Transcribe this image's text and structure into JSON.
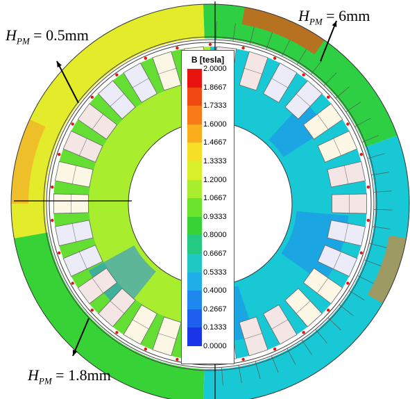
{
  "annotations": {
    "top_right": {
      "prefix": "H",
      "sub": "PM",
      "rest": " = 6mm"
    },
    "top_left": {
      "prefix": "H",
      "sub": "PM",
      "rest": " = 0.5mm"
    },
    "bottom_left": {
      "prefix": "H",
      "sub": "PM",
      "rest": " = 1.8mm"
    }
  },
  "legend": {
    "title": "B [tesla]",
    "ticks": [
      "2.0000",
      "1.8667",
      "1.7333",
      "1.6000",
      "1.4667",
      "1.3333",
      "1.2000",
      "1.0667",
      "0.9333",
      "0.8000",
      "0.6667",
      "0.5333",
      "0.4000",
      "0.2667",
      "0.1333",
      "0.0000"
    ],
    "colors": [
      "#e8140f",
      "#f04a12",
      "#f77a18",
      "#fbae1c",
      "#f6e027",
      "#d8f02c",
      "#a8ee2f",
      "#6be22b",
      "#37d336",
      "#25c981",
      "#20c8c4",
      "#1faee8",
      "#1f88ef",
      "#1f5fee",
      "#1a35e8",
      "#0c10d8"
    ]
  },
  "motor": {
    "slots_right": 15,
    "slots_left": 15,
    "field_colors": {
      "yoke_top_right": "#2fcf43",
      "yoke_right": "#18c8d4",
      "yoke_left": "#e3eb2a",
      "yoke_bottom": "#37d336",
      "teeth": "#a8ee2f",
      "teeth_dark": "#1f88ef",
      "coil_a": "#f5e6e6",
      "coil_b": "#ececf8",
      "coil_c": "#fdf8e6"
    }
  }
}
